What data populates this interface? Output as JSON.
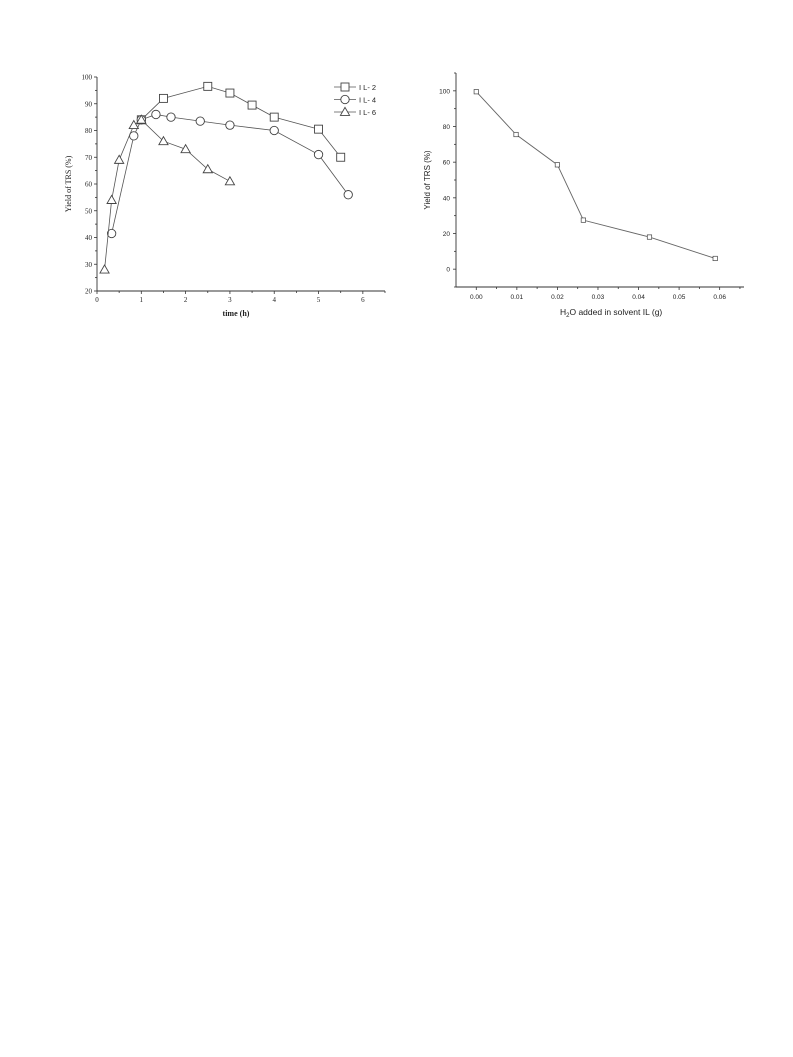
{
  "chart_data": [
    {
      "type": "line",
      "xlabel": "time (h)",
      "ylabel": "Yield of TRS (%)",
      "xlim": [
        0,
        6.5
      ],
      "ylim": [
        20,
        100
      ],
      "xticks": [
        "0",
        "1",
        "2",
        "3",
        "4",
        "5",
        "6"
      ],
      "yticks": [
        "20",
        "30",
        "40",
        "50",
        "60",
        "70",
        "80",
        "90",
        "100"
      ],
      "legend_position": "top-right",
      "series": [
        {
          "name": "I L- 2",
          "marker": "square",
          "x": [
            1.0,
            1.5,
            2.5,
            3.0,
            3.5,
            4.0,
            5.0,
            5.5
          ],
          "y": [
            84,
            92,
            96.5,
            94,
            89.5,
            85,
            80.5,
            70
          ]
        },
        {
          "name": "I L- 4",
          "marker": "circle",
          "x": [
            0.33,
            0.83,
            1.0,
            1.33,
            1.67,
            2.33,
            3.0,
            4.0,
            5.0,
            5.67
          ],
          "y": [
            41.5,
            78,
            84,
            86,
            85,
            83.5,
            82,
            80,
            71,
            56
          ]
        },
        {
          "name": "I L- 6",
          "marker": "triangle",
          "x": [
            0.17,
            0.33,
            0.5,
            0.83,
            1.0,
            1.5,
            2.0,
            2.5,
            3.0
          ],
          "y": [
            28,
            54,
            69,
            82,
            84,
            76,
            73,
            65.5,
            61
          ]
        }
      ]
    },
    {
      "type": "line",
      "xlabel_main": "H",
      "xlabel_sub": "2",
      "xlabel_rest": "O added in solvent IL (g)",
      "ylabel": "Yield of TRS (%)",
      "xlim": [
        -0.005,
        0.066
      ],
      "ylim": [
        -10,
        110
      ],
      "xticks": [
        "0.00",
        "0.01",
        "0.02",
        "0.03",
        "0.04",
        "0.05",
        "0.06"
      ],
      "yticks": [
        "0",
        "20",
        "40",
        "60",
        "80",
        "100"
      ],
      "series": [
        {
          "marker": "square",
          "x": [
            0.0,
            0.0098,
            0.02,
            0.0264,
            0.0427,
            0.0589
          ],
          "y": [
            99.5,
            75.5,
            58.5,
            27.5,
            18,
            6
          ]
        }
      ]
    }
  ]
}
